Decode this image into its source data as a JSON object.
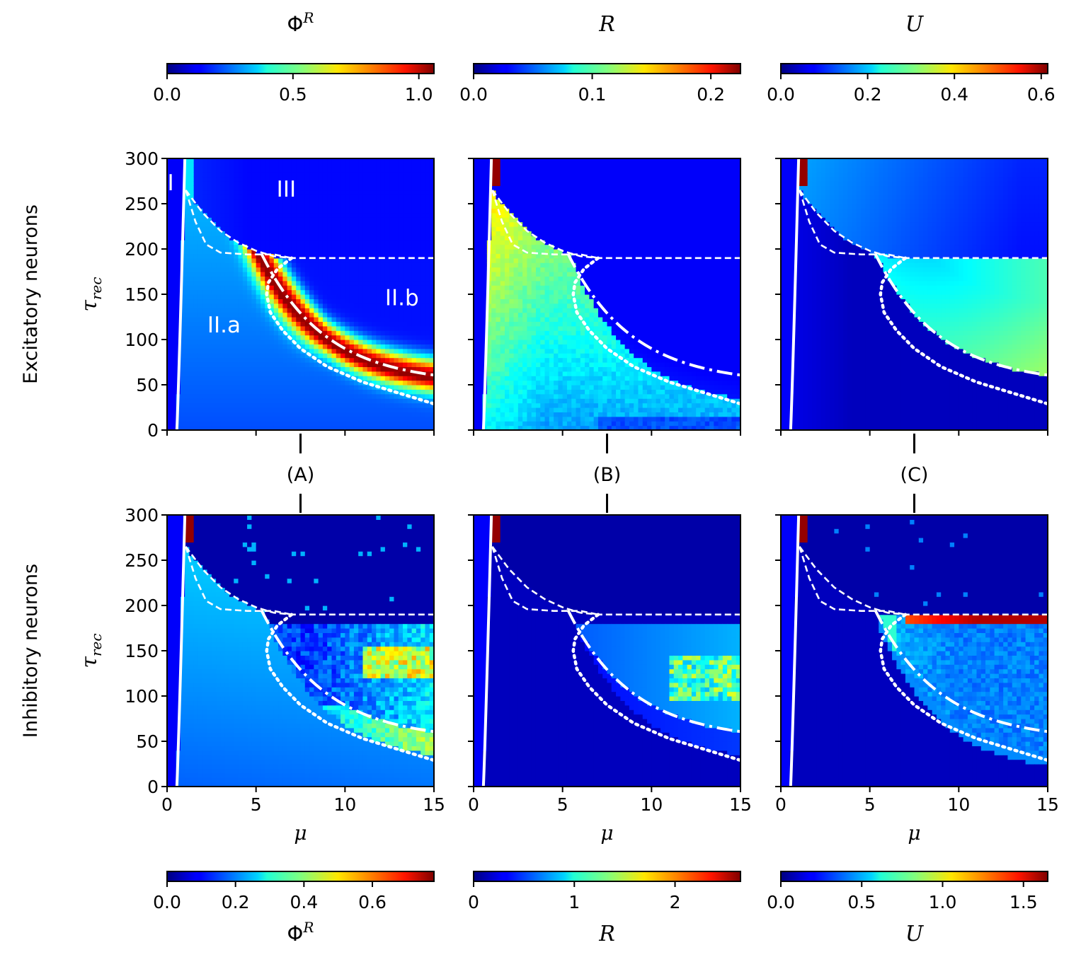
{
  "chart_data": {
    "type": "heatmap",
    "rows": [
      {
        "label": "Excitatory neurons",
        "key": "exc"
      },
      {
        "label": "Inhibitory neurons",
        "key": "inh"
      }
    ],
    "columns": [
      {
        "key": "phi",
        "panel_label": "(A)"
      },
      {
        "key": "R",
        "panel_label": "(B)"
      },
      {
        "key": "U",
        "panel_label": "(C)"
      }
    ],
    "axes": {
      "xlabel": "μ",
      "ylabel": "τ",
      "ylabel_sub": "rec",
      "xlim": [
        0,
        15
      ],
      "ylim": [
        0,
        300
      ],
      "xticks": [
        0,
        5,
        10,
        15
      ],
      "yticks": [
        0,
        50,
        100,
        150,
        200,
        250,
        300
      ],
      "xtick_labels": [
        "0",
        "5",
        "10",
        "15"
      ],
      "ytick_labels": [
        "0",
        "50",
        "100",
        "150",
        "200",
        "250",
        "300"
      ]
    },
    "colormap": "jet",
    "colorbars_top": [
      {
        "title": "Φ",
        "title_sup": "R",
        "range": [
          0,
          1.06
        ],
        "ticks": [
          0.0,
          0.5,
          1.0
        ],
        "tick_labels": [
          "0.0",
          "0.5",
          "1.0"
        ]
      },
      {
        "title": "R",
        "range": [
          0,
          0.225
        ],
        "ticks": [
          0.0,
          0.1,
          0.2
        ],
        "tick_labels": [
          "0.0",
          "0.1",
          "0.2"
        ]
      },
      {
        "title": "U",
        "range": [
          0,
          0.615
        ],
        "ticks": [
          0.0,
          0.2,
          0.4,
          0.6
        ],
        "tick_labels": [
          "0.0",
          "0.2",
          "0.4",
          "0.6"
        ]
      }
    ],
    "colorbars_bottom": [
      {
        "title": "Φ",
        "title_sup": "R",
        "range": [
          0,
          0.78
        ],
        "ticks": [
          0.0,
          0.2,
          0.4,
          0.6
        ],
        "tick_labels": [
          "0.0",
          "0.2",
          "0.4",
          "0.6"
        ]
      },
      {
        "title": "R",
        "range": [
          0,
          2.65
        ],
        "ticks": [
          0,
          1,
          2
        ],
        "tick_labels": [
          "0",
          "1",
          "2"
        ]
      },
      {
        "title": "U",
        "range": [
          0,
          1.65
        ],
        "ticks": [
          0.0,
          0.5,
          1.0,
          1.5
        ],
        "tick_labels": [
          "0.0",
          "0.5",
          "1.0",
          "1.5"
        ]
      }
    ],
    "region_labels": [
      {
        "text": "I",
        "mu": 0.2,
        "tau": 265
      },
      {
        "text": "III",
        "mu": 6.7,
        "tau": 258
      },
      {
        "text": "II.a",
        "mu": 3.2,
        "tau": 108
      },
      {
        "text": "II.b",
        "mu": 13.2,
        "tau": 138
      }
    ],
    "boundaries": [
      {
        "name": "solid",
        "points": [
          [
            0.55,
            0
          ],
          [
            0.62,
            60
          ],
          [
            0.72,
            130
          ],
          [
            0.82,
            200
          ],
          [
            0.92,
            260
          ],
          [
            1.0,
            300
          ]
        ]
      },
      {
        "name": "upper-dashed",
        "points": [
          [
            1.05,
            265
          ],
          [
            2.0,
            240
          ],
          [
            3.0,
            220
          ],
          [
            4.0,
            207
          ],
          [
            5.0,
            198
          ],
          [
            6.0,
            192
          ],
          [
            7.0,
            190
          ],
          [
            15,
            190
          ]
        ]
      },
      {
        "name": "lower-dashed",
        "points": [
          [
            1.05,
            265
          ],
          [
            1.6,
            230
          ],
          [
            2.2,
            205
          ],
          [
            3.0,
            196
          ],
          [
            4.5,
            194
          ],
          [
            6.0,
            194
          ],
          [
            7.0,
            190
          ]
        ]
      },
      {
        "name": "dashdot",
        "points": [
          [
            5.3,
            195
          ],
          [
            6.0,
            175
          ],
          [
            7.0,
            150
          ],
          [
            8.0,
            128
          ],
          [
            9.0,
            111
          ],
          [
            10.0,
            97
          ],
          [
            11.0,
            85
          ],
          [
            12.0,
            74
          ],
          [
            13.0,
            65
          ],
          [
            14.0,
            57
          ],
          [
            15.0,
            51
          ]
        ]
      },
      {
        "name": "dotted",
        "points": [
          [
            7.0,
            190
          ],
          [
            6.2,
            178
          ],
          [
            5.7,
            163
          ],
          [
            5.6,
            150
          ],
          [
            5.8,
            130
          ],
          [
            6.5,
            110
          ],
          [
            7.5,
            90
          ],
          [
            9.0,
            70
          ],
          [
            11.0,
            53
          ],
          [
            13.0,
            41
          ],
          [
            15.0,
            29
          ]
        ]
      }
    ]
  }
}
